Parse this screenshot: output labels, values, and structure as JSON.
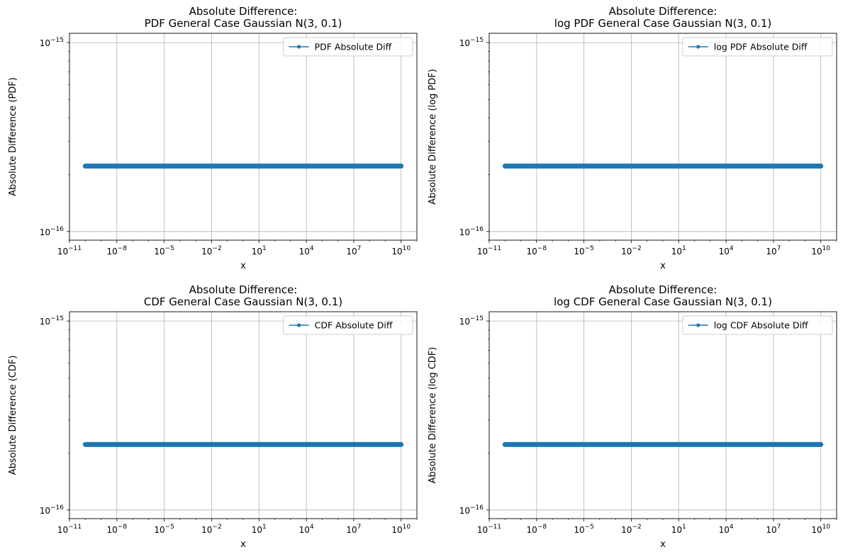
{
  "style": {
    "line_color": "#1f77b4",
    "grid_color": "#b0b0b0",
    "legend_border": "#cccccc"
  },
  "chart_data": [
    {
      "type": "line",
      "title": [
        "Absolute Difference:",
        "PDF General Case Gaussian N(3, 0.1)"
      ],
      "xlabel": "x",
      "ylabel": "Absolute Difference (PDF)",
      "xscale": "log",
      "yscale": "log",
      "xlim": [
        1e-11,
        100000000000.0
      ],
      "ylim": [
        9e-17,
        1.12e-15
      ],
      "xticks": [
        1e-11,
        1e-08,
        1e-05,
        0.01,
        10.0,
        10000.0,
        10000000.0,
        10000000000.0
      ],
      "xtick_labels": [
        [
          "10",
          "−11"
        ],
        [
          "10",
          "−8"
        ],
        [
          "10",
          "−5"
        ],
        [
          "10",
          "−2"
        ],
        [
          "10",
          "1"
        ],
        [
          "10",
          "4"
        ],
        [
          "10",
          "7"
        ],
        [
          "10",
          "10"
        ]
      ],
      "yticks": [
        1e-16,
        1e-15
      ],
      "ytick_labels": [
        [
          "10",
          "−16"
        ],
        [
          "10",
          "−15"
        ]
      ],
      "grid": true,
      "legend_position": "upper right",
      "series": [
        {
          "name": "PDF Absolute Diff",
          "x_range": [
            1e-10,
            10000000000.0
          ],
          "y_value": 2.22e-16,
          "marker": "dot"
        }
      ]
    },
    {
      "type": "line",
      "title": [
        "Absolute Difference:",
        "log PDF General Case Gaussian N(3, 0.1)"
      ],
      "xlabel": "x",
      "ylabel": "Absolute Difference (log PDF)",
      "xscale": "log",
      "yscale": "log",
      "xlim": [
        1e-11,
        100000000000.0
      ],
      "ylim": [
        9e-17,
        1.12e-15
      ],
      "xticks": [
        1e-11,
        1e-08,
        1e-05,
        0.01,
        10.0,
        10000.0,
        10000000.0,
        10000000000.0
      ],
      "xtick_labels": [
        [
          "10",
          "−11"
        ],
        [
          "10",
          "−8"
        ],
        [
          "10",
          "−5"
        ],
        [
          "10",
          "−2"
        ],
        [
          "10",
          "1"
        ],
        [
          "10",
          "4"
        ],
        [
          "10",
          "7"
        ],
        [
          "10",
          "10"
        ]
      ],
      "yticks": [
        1e-16,
        1e-15
      ],
      "ytick_labels": [
        [
          "10",
          "−16"
        ],
        [
          "10",
          "−15"
        ]
      ],
      "grid": true,
      "legend_position": "upper right",
      "series": [
        {
          "name": "log PDF Absolute Diff",
          "x_range": [
            1e-10,
            10000000000.0
          ],
          "y_value": 2.22e-16,
          "marker": "dot"
        }
      ]
    },
    {
      "type": "line",
      "title": [
        "Absolute Difference:",
        "CDF General Case Gaussian N(3, 0.1)"
      ],
      "xlabel": "x",
      "ylabel": "Absolute Difference (CDF)",
      "xscale": "log",
      "yscale": "log",
      "xlim": [
        1e-11,
        100000000000.0
      ],
      "ylim": [
        9e-17,
        1.12e-15
      ],
      "xticks": [
        1e-11,
        1e-08,
        1e-05,
        0.01,
        10.0,
        10000.0,
        10000000.0,
        10000000000.0
      ],
      "xtick_labels": [
        [
          "10",
          "−11"
        ],
        [
          "10",
          "−8"
        ],
        [
          "10",
          "−5"
        ],
        [
          "10",
          "−2"
        ],
        [
          "10",
          "1"
        ],
        [
          "10",
          "4"
        ],
        [
          "10",
          "7"
        ],
        [
          "10",
          "10"
        ]
      ],
      "yticks": [
        1e-16,
        1e-15
      ],
      "ytick_labels": [
        [
          "10",
          "−16"
        ],
        [
          "10",
          "−15"
        ]
      ],
      "grid": true,
      "legend_position": "upper right",
      "series": [
        {
          "name": "CDF Absolute Diff",
          "x_range": [
            1e-10,
            10000000000.0
          ],
          "y_value": 2.22e-16,
          "marker": "dot"
        }
      ]
    },
    {
      "type": "line",
      "title": [
        "Absolute Difference:",
        "log CDF General Case Gaussian N(3, 0.1)"
      ],
      "xlabel": "x",
      "ylabel": "Absolute Difference (log CDF)",
      "xscale": "log",
      "yscale": "log",
      "xlim": [
        1e-11,
        100000000000.0
      ],
      "ylim": [
        9e-17,
        1.12e-15
      ],
      "xticks": [
        1e-11,
        1e-08,
        1e-05,
        0.01,
        10.0,
        10000.0,
        10000000.0,
        10000000000.0
      ],
      "xtick_labels": [
        [
          "10",
          "−11"
        ],
        [
          "10",
          "−8"
        ],
        [
          "10",
          "−5"
        ],
        [
          "10",
          "−2"
        ],
        [
          "10",
          "1"
        ],
        [
          "10",
          "4"
        ],
        [
          "10",
          "7"
        ],
        [
          "10",
          "10"
        ]
      ],
      "yticks": [
        1e-16,
        1e-15
      ],
      "ytick_labels": [
        [
          "10",
          "−16"
        ],
        [
          "10",
          "−15"
        ]
      ],
      "grid": true,
      "legend_position": "upper right",
      "series": [
        {
          "name": "log CDF Absolute Diff",
          "x_range": [
            1e-10,
            10000000000.0
          ],
          "y_value": 2.22e-16,
          "marker": "dot"
        }
      ]
    }
  ]
}
